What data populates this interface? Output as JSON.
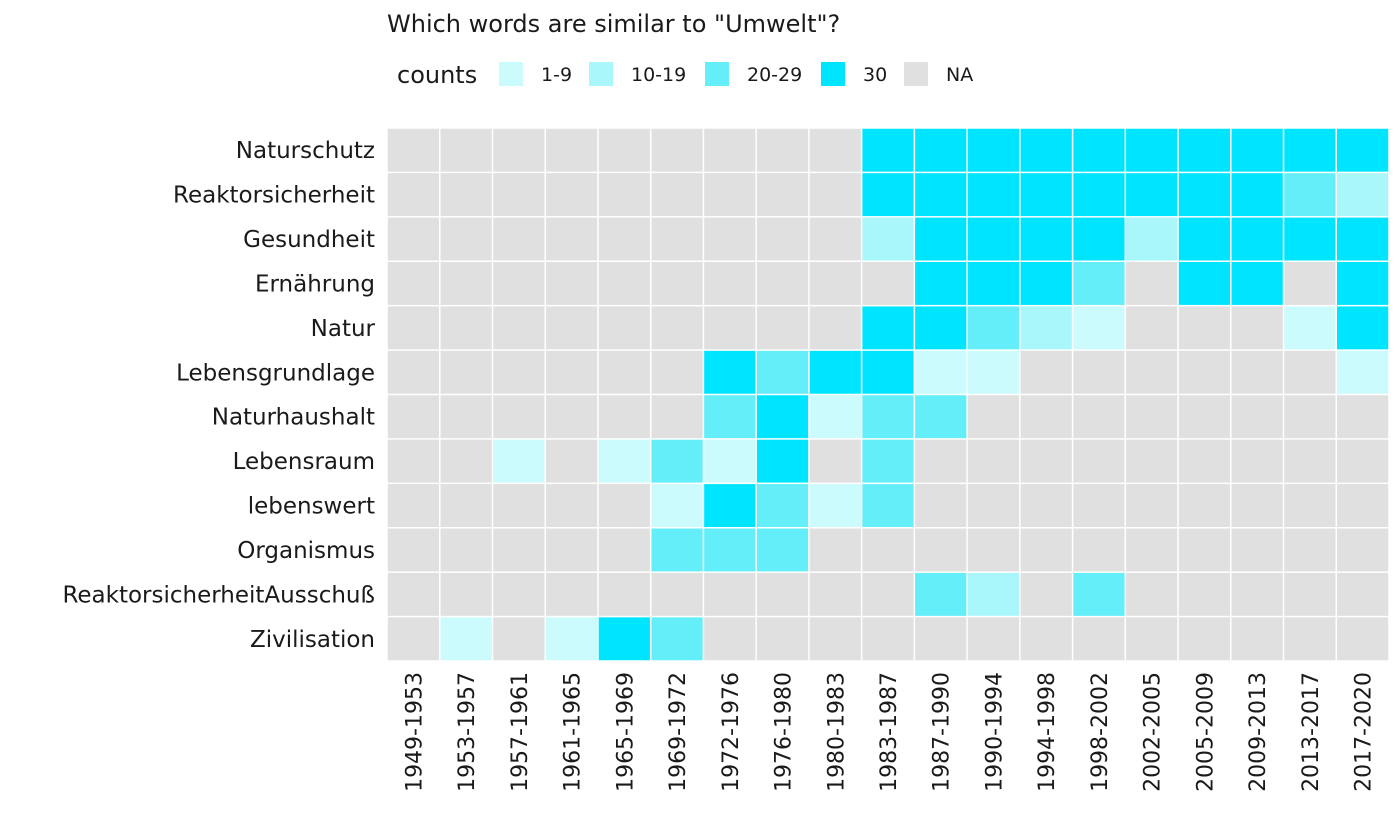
{
  "chart_data": {
    "type": "heatmap",
    "title": "Which words are similar to \"Umwelt\"?",
    "xlabel": "",
    "ylabel": "",
    "legend": {
      "title": "counts",
      "placement": "top",
      "items": [
        {
          "label": "1-9",
          "color": "#ccfbfd"
        },
        {
          "label": "10-19",
          "color": "#a9f6fb"
        },
        {
          "label": "20-29",
          "color": "#63eef9"
        },
        {
          "label": "30",
          "color": "#00e5ff"
        },
        {
          "label": "NA",
          "color": "#e0e0e0"
        }
      ]
    },
    "grid": true,
    "columns": [
      "1949-1953",
      "1953-1957",
      "1957-1961",
      "1961-1965",
      "1965-1969",
      "1969-1972",
      "1972-1976",
      "1976-1980",
      "1980-1983",
      "1983-1987",
      "1987-1990",
      "1990-1994",
      "1994-1998",
      "1998-2002",
      "2002-2005",
      "2005-2009",
      "2009-2013",
      "2013-2017",
      "2017-2020"
    ],
    "rows": [
      "Naturschutz",
      "Reaktorsicherheit",
      "Gesundheit",
      "Ernährung",
      "Natur",
      "Lebensgrundlage",
      "Naturhaushalt",
      "Lebensraum",
      "lebenswert",
      "Organismus",
      "ReaktorsicherheitAusschuß",
      "Zivilisation"
    ],
    "values": [
      [
        "NA",
        "NA",
        "NA",
        "NA",
        "NA",
        "NA",
        "NA",
        "NA",
        "NA",
        "30",
        "30",
        "30",
        "30",
        "30",
        "30",
        "30",
        "30",
        "30",
        "30"
      ],
      [
        "NA",
        "NA",
        "NA",
        "NA",
        "NA",
        "NA",
        "NA",
        "NA",
        "NA",
        "30",
        "30",
        "30",
        "30",
        "30",
        "30",
        "30",
        "30",
        "20-29",
        "10-19"
      ],
      [
        "NA",
        "NA",
        "NA",
        "NA",
        "NA",
        "NA",
        "NA",
        "NA",
        "NA",
        "10-19",
        "30",
        "30",
        "30",
        "30",
        "10-19",
        "30",
        "30",
        "30",
        "30"
      ],
      [
        "NA",
        "NA",
        "NA",
        "NA",
        "NA",
        "NA",
        "NA",
        "NA",
        "NA",
        "NA",
        "30",
        "30",
        "30",
        "20-29",
        "NA",
        "30",
        "30",
        "NA",
        "30"
      ],
      [
        "NA",
        "NA",
        "NA",
        "NA",
        "NA",
        "NA",
        "NA",
        "NA",
        "NA",
        "30",
        "30",
        "20-29",
        "10-19",
        "1-9",
        "NA",
        "NA",
        "NA",
        "1-9",
        "30"
      ],
      [
        "NA",
        "NA",
        "NA",
        "NA",
        "NA",
        "NA",
        "30",
        "20-29",
        "30",
        "30",
        "1-9",
        "1-9",
        "NA",
        "NA",
        "NA",
        "NA",
        "NA",
        "NA",
        "1-9"
      ],
      [
        "NA",
        "NA",
        "NA",
        "NA",
        "NA",
        "NA",
        "20-29",
        "30",
        "1-9",
        "20-29",
        "20-29",
        "NA",
        "NA",
        "NA",
        "NA",
        "NA",
        "NA",
        "NA",
        "NA"
      ],
      [
        "NA",
        "NA",
        "1-9",
        "NA",
        "1-9",
        "20-29",
        "1-9",
        "30",
        "NA",
        "20-29",
        "NA",
        "NA",
        "NA",
        "NA",
        "NA",
        "NA",
        "NA",
        "NA",
        "NA"
      ],
      [
        "NA",
        "NA",
        "NA",
        "NA",
        "NA",
        "1-9",
        "30",
        "20-29",
        "1-9",
        "20-29",
        "NA",
        "NA",
        "NA",
        "NA",
        "NA",
        "NA",
        "NA",
        "NA",
        "NA"
      ],
      [
        "NA",
        "NA",
        "NA",
        "NA",
        "NA",
        "20-29",
        "20-29",
        "20-29",
        "NA",
        "NA",
        "NA",
        "NA",
        "NA",
        "NA",
        "NA",
        "NA",
        "NA",
        "NA",
        "NA"
      ],
      [
        "NA",
        "NA",
        "NA",
        "NA",
        "NA",
        "NA",
        "NA",
        "NA",
        "NA",
        "NA",
        "20-29",
        "10-19",
        "NA",
        "20-29",
        "NA",
        "NA",
        "NA",
        "NA",
        "NA"
      ],
      [
        "NA",
        "1-9",
        "NA",
        "1-9",
        "30",
        "20-29",
        "NA",
        "NA",
        "NA",
        "NA",
        "NA",
        "NA",
        "NA",
        "NA",
        "NA",
        "NA",
        "NA",
        "NA",
        "NA"
      ]
    ]
  }
}
